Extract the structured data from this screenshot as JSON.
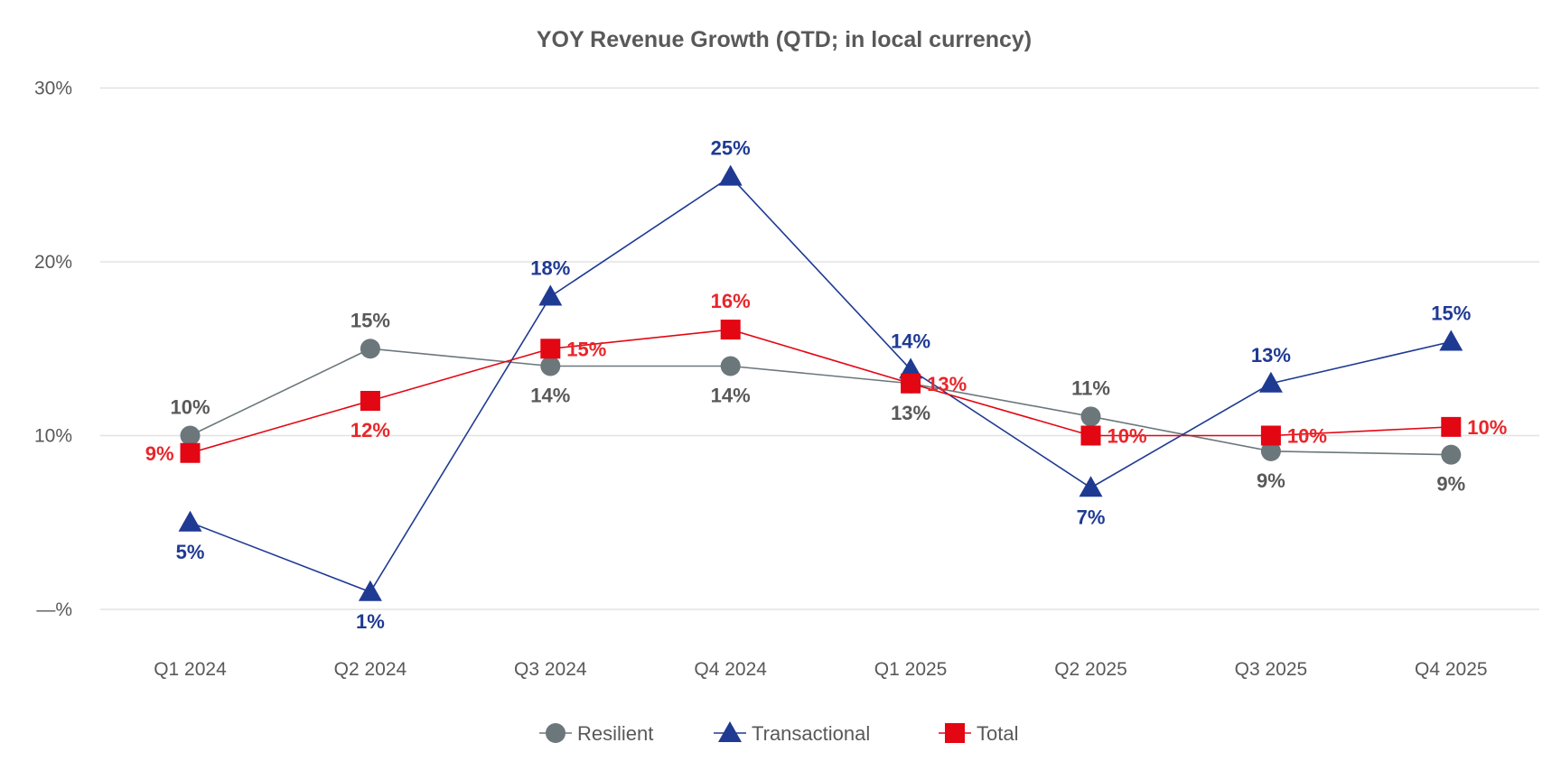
{
  "chart_data": {
    "type": "line",
    "title": "YOY Revenue Growth (QTD; in local currency)",
    "xlabel": "",
    "ylabel": "",
    "categories": [
      "Q1 2024",
      "Q2 2024",
      "Q3 2024",
      "Q4 2024",
      "Q1 2025",
      "Q2 2025",
      "Q3 2025",
      "Q4 2025"
    ],
    "ylim": [
      0,
      30
    ],
    "yticks": [
      {
        "value": 0,
        "label": "—%"
      },
      {
        "value": 10,
        "label": "10%"
      },
      {
        "value": 20,
        "label": "20%"
      },
      {
        "value": 30,
        "label": "30%"
      }
    ],
    "grid": true,
    "legend_position": "bottom",
    "series": [
      {
        "name": "Resilient",
        "color": "#6b777b",
        "label_color": "#595959",
        "marker": "circle",
        "values": [
          10.0,
          15.0,
          14.0,
          14.0,
          13.0,
          11.1,
          9.1,
          8.9
        ],
        "labels": [
          "10%",
          "15%",
          "14%",
          "14%",
          "13%",
          "11%",
          "9%",
          "9%"
        ]
      },
      {
        "name": "Transactional",
        "color": "#1f3a93",
        "label_color": "#1f3a93",
        "marker": "triangle",
        "values": [
          5.0,
          1.0,
          18.0,
          24.9,
          13.8,
          7.0,
          13.0,
          15.4
        ],
        "labels": [
          "5%",
          "1%",
          "18%",
          "25%",
          "14%",
          "7%",
          "13%",
          "15%"
        ]
      },
      {
        "name": "Total",
        "color": "#e30613",
        "label_color": "#e8262a",
        "marker": "square",
        "values": [
          9.0,
          12.0,
          15.0,
          16.1,
          13.0,
          10.0,
          10.0,
          10.5
        ],
        "labels": [
          "9%",
          "12%",
          "15%",
          "16%",
          "13%",
          "10%",
          "10%",
          "10%"
        ]
      }
    ]
  }
}
